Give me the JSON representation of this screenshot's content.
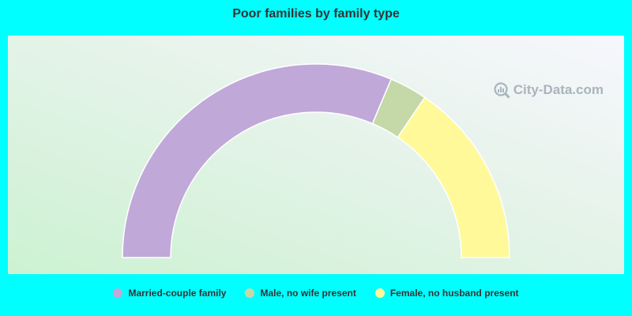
{
  "chart_data": {
    "type": "pie",
    "subtype": "half-donut",
    "title": "Poor families by family type",
    "series": [
      {
        "name": "Married-couple family",
        "value": 62.7,
        "color": "#c0a8d9"
      },
      {
        "name": "Male, no wife present",
        "value": 6.3,
        "color": "#c5d9a8"
      },
      {
        "name": "Female, no husband present",
        "value": 31.0,
        "color": "#fff99a"
      }
    ],
    "legend_position": "bottom"
  },
  "watermark": {
    "text": "City-Data.com",
    "icon": "magnifier-chart-icon"
  },
  "colors": {
    "background": "#00ffff",
    "slice_border": "#ffffff"
  }
}
